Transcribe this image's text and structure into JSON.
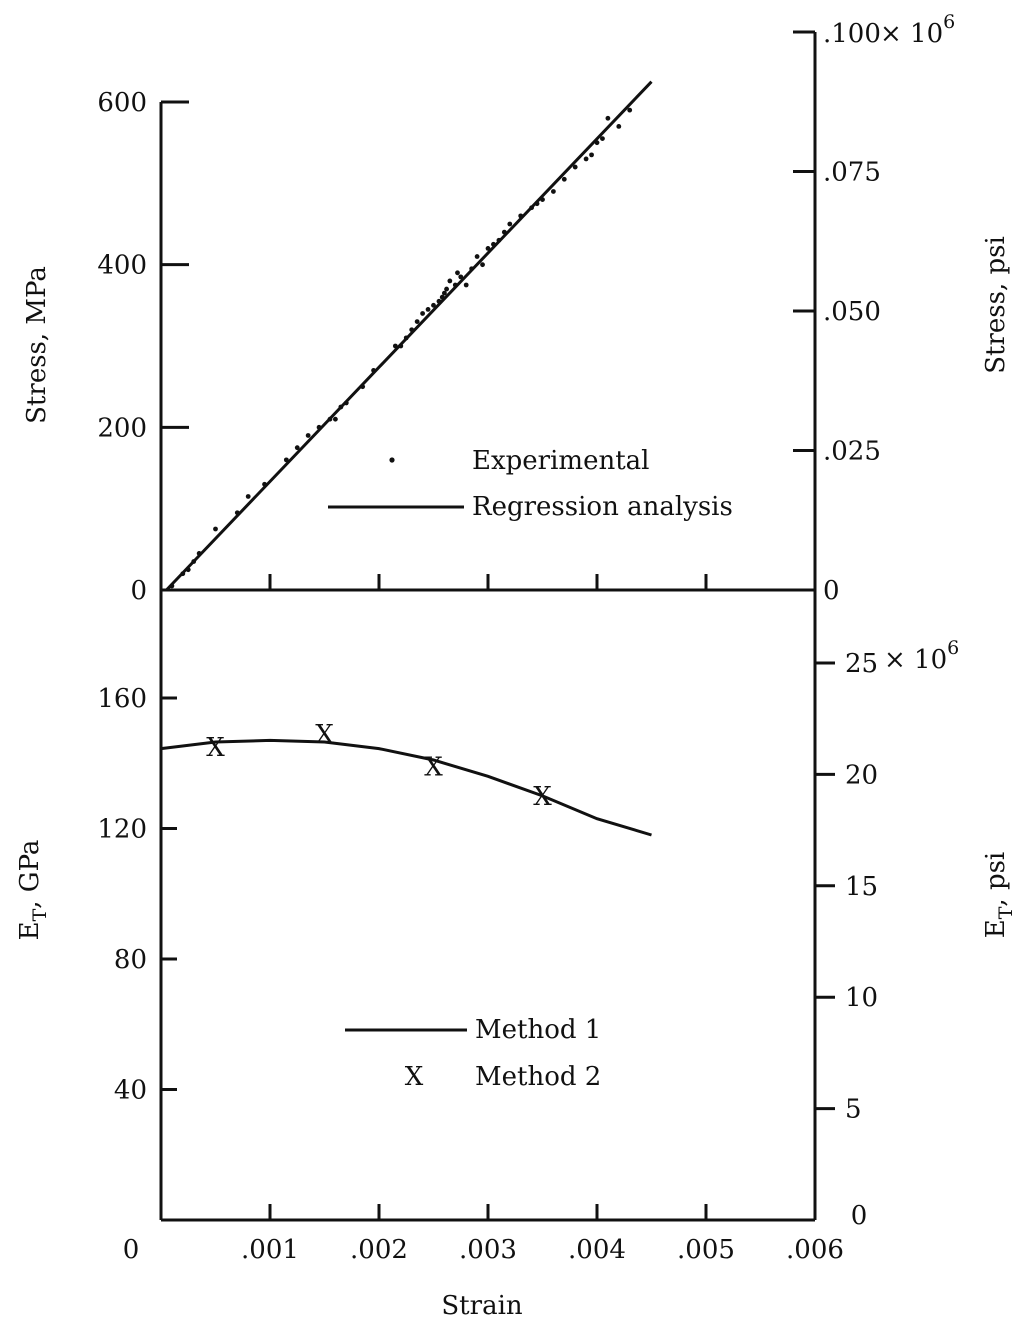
{
  "chart_data": [
    {
      "type": "scatter",
      "xlabel": "Strain",
      "ylabel": "Stress, MPa",
      "ylabel_right": "Stress, psi",
      "xlim": [
        0,
        0.006
      ],
      "ylim": [
        0,
        600
      ],
      "yticks": [
        0,
        200,
        400,
        600
      ],
      "yticks_right": [
        {
          "value": 0,
          "label": "0"
        },
        {
          "value": 25000,
          "label": ".025"
        },
        {
          "value": 50000,
          "label": ".050"
        },
        {
          "value": 75000,
          "label": ".075"
        },
        {
          "value": 100000,
          "label": ".100"
        }
      ],
      "y_right_multiplier": "× 10",
      "y_right_multiplier_exp": "6",
      "legend": [
        {
          "label": "Experimental",
          "marker": "dot"
        },
        {
          "label": "Regression analysis",
          "marker": "line"
        }
      ],
      "series": [
        {
          "name": "Experimental",
          "kind": "points",
          "x": [
            0.0001,
            0.0002,
            0.00025,
            0.0003,
            0.00035,
            0.0005,
            0.0007,
            0.0008,
            0.00095,
            0.00115,
            0.00125,
            0.00135,
            0.00145,
            0.00155,
            0.0016,
            0.00165,
            0.0017,
            0.00185,
            0.00195,
            0.00215,
            0.0022,
            0.00225,
            0.0023,
            0.00235,
            0.0024,
            0.00245,
            0.0025,
            0.00255,
            0.00258,
            0.0026,
            0.00262,
            0.00265,
            0.0027,
            0.00272,
            0.00275,
            0.0028,
            0.00285,
            0.0029,
            0.00295,
            0.003,
            0.00305,
            0.0031,
            0.00315,
            0.0032,
            0.0033,
            0.0034,
            0.00345,
            0.0035,
            0.0036,
            0.0037,
            0.0038,
            0.0039,
            0.00395,
            0.004,
            0.00405,
            0.0041,
            0.0042,
            0.0043
          ],
          "y": [
            5,
            20,
            25,
            35,
            45,
            75,
            95,
            115,
            130,
            160,
            175,
            190,
            200,
            210,
            210,
            225,
            230,
            250,
            270,
            300,
            300,
            310,
            320,
            330,
            340,
            345,
            350,
            355,
            360,
            365,
            370,
            380,
            375,
            390,
            385,
            375,
            395,
            410,
            400,
            420,
            425,
            430,
            440,
            450,
            460,
            470,
            475,
            480,
            490,
            505,
            520,
            530,
            535,
            550,
            555,
            580,
            570,
            590
          ]
        },
        {
          "name": "Regression analysis",
          "kind": "line",
          "x": [
            5e-05,
            0.0045
          ],
          "y": [
            0,
            625
          ]
        }
      ]
    },
    {
      "type": "line",
      "xlabel": "Strain",
      "ylabel": "E",
      "ylabel_sub": "T",
      "ylabel_unit": ", GPa",
      "ylabel_right": "E",
      "ylabel_right_sub": "T",
      "ylabel_right_unit": ", psi",
      "xlim": [
        0,
        0.006
      ],
      "xticks": [
        {
          "value": 0,
          "label": "0"
        },
        {
          "value": 0.001,
          "label": ".001"
        },
        {
          "value": 0.002,
          "label": ".002"
        },
        {
          "value": 0.003,
          "label": ".003"
        },
        {
          "value": 0.004,
          "label": ".004"
        },
        {
          "value": 0.005,
          "label": ".005"
        },
        {
          "value": 0.006,
          "label": ".006"
        }
      ],
      "ylim": [
        0,
        180
      ],
      "yticks": [
        40,
        80,
        120,
        160
      ],
      "yticks_right": [
        {
          "value": 0,
          "label": "0"
        },
        {
          "value": 5000000,
          "label": "5"
        },
        {
          "value": 10000000,
          "label": "10"
        },
        {
          "value": 15000000,
          "label": "15"
        },
        {
          "value": 20000000,
          "label": "20"
        },
        {
          "value": 25000000,
          "label": "25"
        }
      ],
      "y_right_multiplier": "× 10",
      "y_right_multiplier_exp": "6",
      "legend": [
        {
          "label": "Method  1",
          "marker": "line"
        },
        {
          "label": "Method  2",
          "marker": "X"
        }
      ],
      "series": [
        {
          "name": "Method  1",
          "kind": "line",
          "x": [
            0,
            0.0005,
            0.001,
            0.0015,
            0.002,
            0.0025,
            0.003,
            0.0035,
            0.004,
            0.0045
          ],
          "y": [
            144.5,
            146.5,
            147,
            146.5,
            144.5,
            141,
            136,
            130,
            123,
            118
          ]
        },
        {
          "name": "Method  2",
          "kind": "marker",
          "marker_text": "X",
          "x": [
            0.0005,
            0.0015,
            0.0025,
            0.0035
          ],
          "y": [
            145,
            149,
            139,
            130
          ]
        }
      ]
    }
  ]
}
